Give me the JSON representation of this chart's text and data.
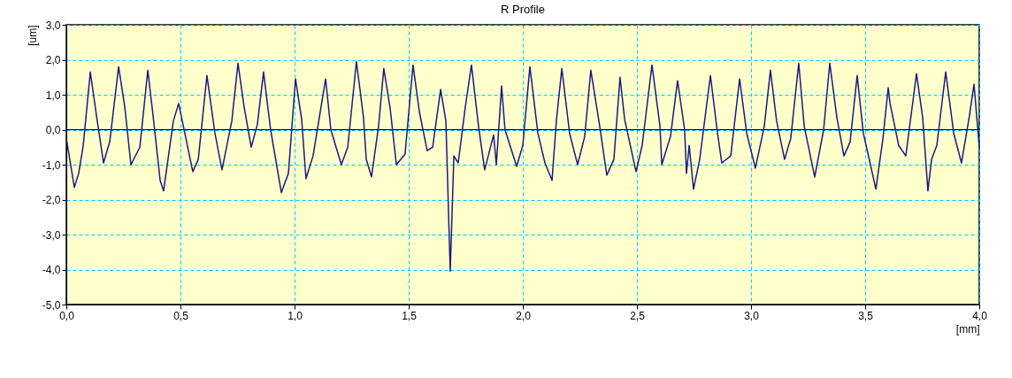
{
  "chart_data": {
    "type": "line",
    "title": "R Profile",
    "xlabel": "[mm]",
    "ylabel": "[um]",
    "x": [
      0.0,
      0.035,
      0.054,
      0.074,
      0.105,
      0.132,
      0.163,
      0.19,
      0.229,
      0.256,
      0.283,
      0.322,
      0.357,
      0.38,
      0.411,
      0.426,
      0.469,
      0.492,
      0.508,
      0.554,
      0.578,
      0.616,
      0.651,
      0.682,
      0.725,
      0.752,
      0.779,
      0.81,
      0.837,
      0.864,
      0.895,
      0.942,
      0.973,
      1.004,
      1.031,
      1.05,
      1.081,
      1.136,
      1.159,
      1.205,
      1.233,
      1.271,
      1.302,
      1.314,
      1.337,
      1.368,
      1.391,
      1.419,
      1.446,
      1.484,
      1.519,
      1.547,
      1.581,
      1.605,
      1.64,
      1.663,
      1.682,
      1.698,
      1.717,
      1.748,
      1.775,
      1.806,
      1.833,
      1.872,
      1.884,
      1.907,
      1.922,
      1.973,
      2.0,
      2.031,
      2.066,
      2.097,
      2.128,
      2.147,
      2.171,
      2.205,
      2.24,
      2.271,
      2.298,
      2.337,
      2.368,
      2.399,
      2.426,
      2.446,
      2.496,
      2.523,
      2.566,
      2.601,
      2.609,
      2.647,
      2.678,
      2.709,
      2.717,
      2.729,
      2.748,
      2.775,
      2.822,
      2.853,
      2.872,
      2.911,
      2.95,
      2.981,
      3.019,
      3.058,
      3.085,
      3.112,
      3.147,
      3.174,
      3.209,
      3.233,
      3.279,
      3.318,
      3.345,
      3.376,
      3.407,
      3.434,
      3.465,
      3.492,
      3.523,
      3.547,
      3.578,
      3.601,
      3.609,
      3.647,
      3.678,
      3.725,
      3.752,
      3.775,
      3.791,
      3.814,
      3.853,
      3.888,
      3.922,
      3.957,
      3.977,
      4.0
    ],
    "series": [
      {
        "color": "#1a1a80",
        "values": [
          -0.25,
          -1.65,
          -1.25,
          -0.45,
          1.65,
          0.4,
          -0.95,
          -0.35,
          1.8,
          0.65,
          -1.0,
          -0.5,
          1.7,
          0.4,
          -1.45,
          -1.75,
          0.25,
          0.75,
          0.25,
          -1.2,
          -0.85,
          1.55,
          -0.1,
          -1.15,
          0.25,
          1.9,
          0.65,
          -0.5,
          0.15,
          1.65,
          0.0,
          -1.8,
          -1.25,
          1.45,
          0.3,
          -1.4,
          -0.75,
          1.45,
          0.0,
          -1.0,
          -0.5,
          1.95,
          0.35,
          -0.85,
          -1.35,
          0.1,
          1.75,
          0.6,
          -1.0,
          -0.7,
          1.85,
          0.5,
          -0.6,
          -0.5,
          1.15,
          0.25,
          -4.05,
          -0.75,
          -0.95,
          0.65,
          1.85,
          0.1,
          -1.15,
          -0.15,
          -1.0,
          1.25,
          0.0,
          -1.05,
          -0.45,
          1.8,
          -0.1,
          -0.95,
          -1.45,
          0.25,
          1.75,
          -0.1,
          -1.0,
          -0.2,
          1.7,
          0.1,
          -1.3,
          -0.85,
          1.5,
          0.3,
          -1.2,
          -0.45,
          1.85,
          0.1,
          -1.0,
          -0.2,
          1.4,
          0.0,
          -1.25,
          -0.45,
          -1.7,
          -0.85,
          1.55,
          -0.1,
          -0.95,
          -0.75,
          1.45,
          -0.1,
          -1.1,
          0.1,
          1.7,
          0.25,
          -0.85,
          -0.25,
          1.9,
          0.1,
          -1.35,
          0.0,
          1.9,
          0.35,
          -0.75,
          -0.35,
          1.55,
          -0.1,
          -1.0,
          -1.7,
          -0.25,
          1.2,
          0.75,
          -0.45,
          -0.75,
          1.6,
          0.35,
          -1.75,
          -0.85,
          -0.45,
          1.65,
          -0.1,
          -0.95,
          0.4,
          1.3,
          -0.5
        ]
      }
    ],
    "xlim": [
      0.0,
      4.0
    ],
    "xticks": [
      {
        "value": 0.0,
        "label": "0,0"
      },
      {
        "value": 0.5,
        "label": "0,5"
      },
      {
        "value": 1.0,
        "label": "1,0"
      },
      {
        "value": 1.5,
        "label": "1,5"
      },
      {
        "value": 2.0,
        "label": "2,0"
      },
      {
        "value": 2.5,
        "label": "2,5"
      },
      {
        "value": 3.0,
        "label": "3,0"
      },
      {
        "value": 3.5,
        "label": "3,5"
      },
      {
        "value": 4.0,
        "label": "4,0"
      }
    ],
    "ylim": [
      -5.0,
      3.0
    ],
    "yticks": [
      {
        "value": -5.0,
        "label": "-5,0"
      },
      {
        "value": -4.0,
        "label": "-4,0"
      },
      {
        "value": -3.0,
        "label": "-3,0"
      },
      {
        "value": -2.0,
        "label": "-2,0"
      },
      {
        "value": -1.0,
        "label": "-1,0"
      },
      {
        "value": 0.0,
        "label": "0,0"
      },
      {
        "value": 1.0,
        "label": "1,0"
      },
      {
        "value": 2.0,
        "label": "2,0"
      },
      {
        "value": 3.0,
        "label": "3,0"
      }
    ],
    "ref_lines": [
      {
        "axis": "y",
        "value": 0.0,
        "color": "#000000"
      }
    ],
    "grid": true,
    "marker": "none",
    "line_style": "solid"
  }
}
